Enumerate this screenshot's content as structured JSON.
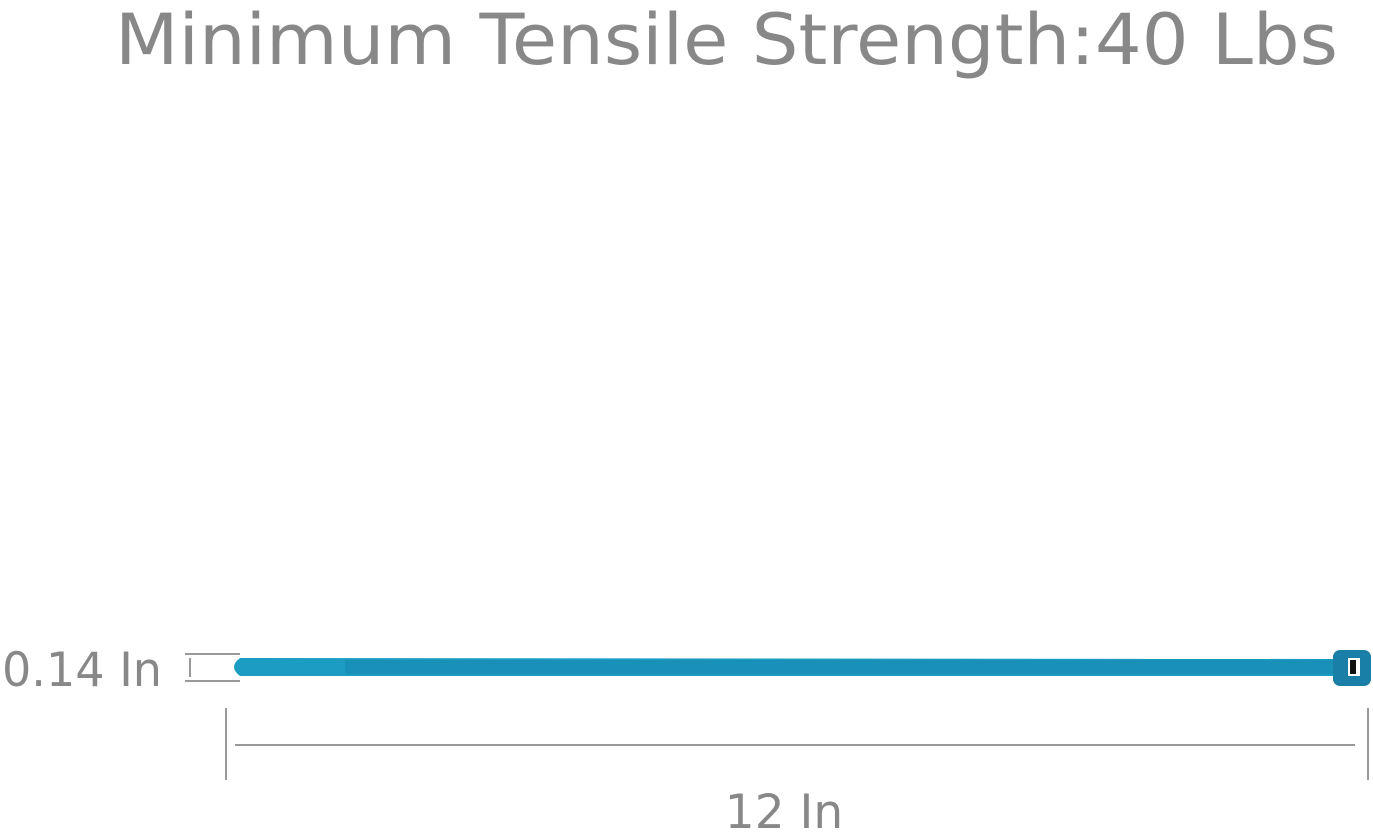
{
  "title": "Minimum Tensile Strength:40 Lbs",
  "dimensions": {
    "width_label": "0.14 In",
    "length_label": "12 In"
  },
  "product": {
    "name": "cable tie",
    "color": "#1b9cc2",
    "head_color": "#1a7fa6"
  },
  "colors": {
    "text": "#888888",
    "lines": "#999999"
  }
}
